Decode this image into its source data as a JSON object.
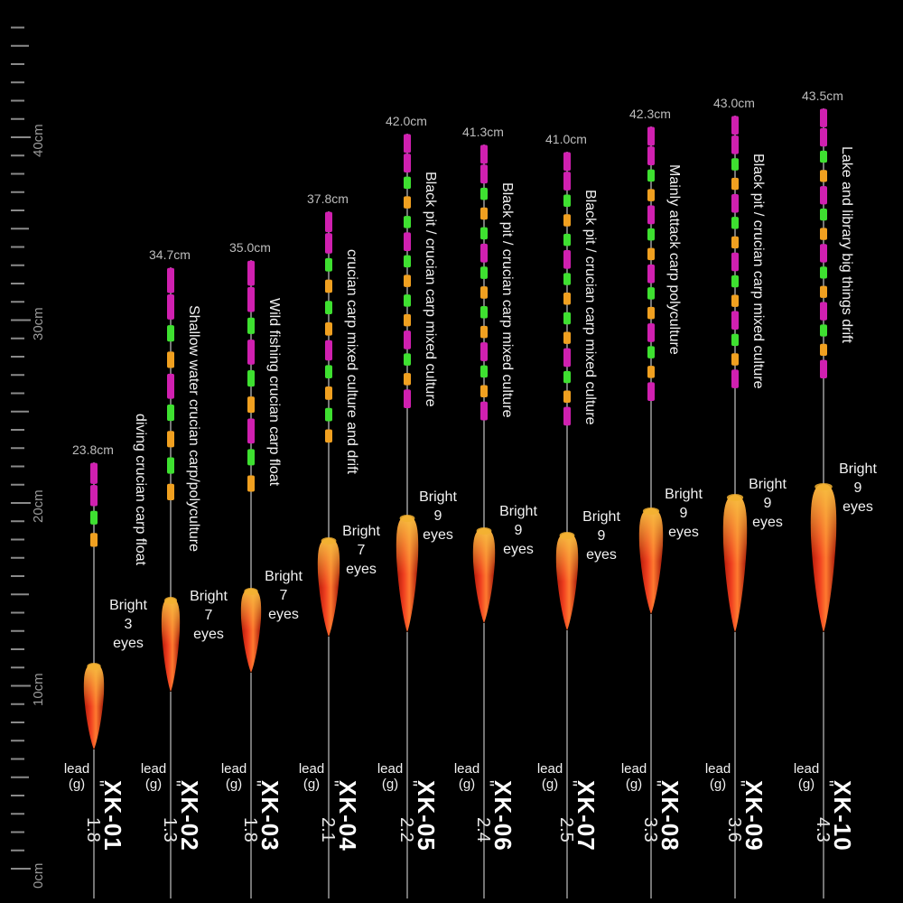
{
  "ruler": {
    "labels": [
      "40cm",
      "30cm",
      "20cm",
      "10cm",
      "0cm"
    ]
  },
  "floats": [
    {
      "model": "XK-01",
      "length": "23.8cm",
      "lead_label": "lead\n(g)",
      "mark": "\"",
      "weight": "1.8",
      "bright": "Bright\n3\neyes",
      "desc": "diving crucian carp float"
    },
    {
      "model": "XK-02",
      "length": "34.7cm",
      "lead_label": "lead\n(g)",
      "mark": "\"",
      "weight": "1.3",
      "bright": "Bright\n7\neyes",
      "desc": "Shallow water crucian carp/polyculture"
    },
    {
      "model": "XK-03",
      "length": "35.0cm",
      "lead_label": "lead\n(g)",
      "mark": "\"",
      "weight": "1.8",
      "bright": "Bright\n7\neyes",
      "desc": "Wild fishing crucian carp float"
    },
    {
      "model": "XK-04",
      "length": "37.8cm",
      "lead_label": "lead\n(g)",
      "mark": "\"",
      "weight": "2.1",
      "bright": "Bright\n7\neyes",
      "desc": "crucian carp mixed culture and drift"
    },
    {
      "model": "XK-05",
      "length": "42.0cm",
      "lead_label": "lead\n(g)",
      "mark": "\"",
      "weight": "2.2",
      "bright": "Bright\n9\neyes",
      "desc": "Black pit / crucian carp mixed culture"
    },
    {
      "model": "XK-06",
      "length": "41.3cm",
      "lead_label": "lead\n(g)",
      "mark": "\"",
      "weight": "2.4",
      "bright": "Bright\n9\neyes",
      "desc": "Black pit / crucian carp mixed culture"
    },
    {
      "model": "XK-07",
      "length": "41.0cm",
      "lead_label": "lead\n(g)",
      "mark": "\"",
      "weight": "2.5",
      "bright": "Bright\n9\neyes",
      "desc": "Black pit / crucian carp mixed culture"
    },
    {
      "model": "XK-08",
      "length": "42.3cm",
      "lead_label": "lead\n(g)",
      "mark": "\"",
      "weight": "3.3",
      "bright": "Bright\n9\neyes",
      "desc": "Mainly attack carp polyculture"
    },
    {
      "model": "XK-09",
      "length": "43.0cm",
      "lead_label": "lead\n(g)",
      "mark": "\"",
      "weight": "3.6",
      "bright": "Bright\n9\neyes",
      "desc": "Black pit / crucian carp mixed culture"
    },
    {
      "model": "XK-10",
      "length": "43.5cm",
      "lead_label": "lead\n(g)",
      "mark": "\"",
      "weight": "4.3",
      "bright": "Bright\n9\neyes",
      "desc": "Lake and library big things drift"
    }
  ],
  "colors": {
    "background": "#000000",
    "segment_magenta": "#d020b0",
    "segment_green": "#3ee030",
    "segment_orange": "#f0a020",
    "body_red": "#e8301a",
    "body_gold": "#f2b030"
  }
}
